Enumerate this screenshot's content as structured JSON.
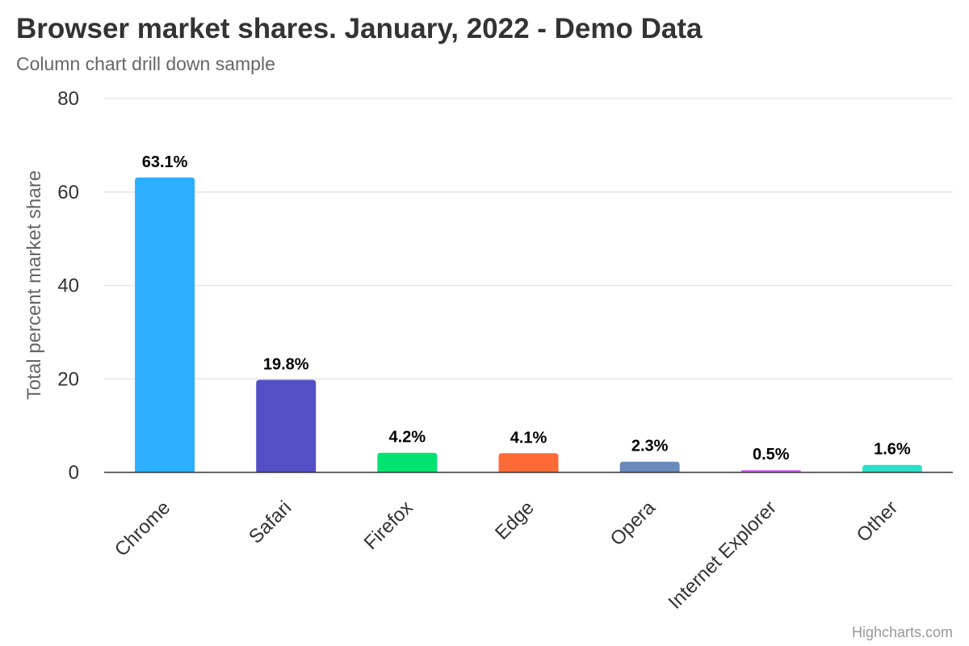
{
  "chart_data": {
    "type": "bar",
    "title": "Browser market shares. January, 2022 - Demo Data",
    "subtitle": "Column chart drill down sample",
    "ylabel": "Total percent market share",
    "xlabel": "",
    "ylim": [
      0,
      80
    ],
    "yticks": [
      0,
      20,
      40,
      60,
      80
    ],
    "grid": true,
    "legend": "none",
    "categories": [
      "Chrome",
      "Safari",
      "Firefox",
      "Edge",
      "Opera",
      "Internet Explorer",
      "Other"
    ],
    "values": [
      63.1,
      19.8,
      4.2,
      4.1,
      2.3,
      0.5,
      1.6
    ],
    "data_labels": [
      "63.1%",
      "19.8%",
      "4.2%",
      "4.1%",
      "2.3%",
      "0.5%",
      "1.6%"
    ],
    "colors": [
      "#2caffe",
      "#544fc5",
      "#00e272",
      "#fe6a35",
      "#6b8abc",
      "#d568fb",
      "#2ee0ca"
    ]
  },
  "credits": "Highcharts.com"
}
